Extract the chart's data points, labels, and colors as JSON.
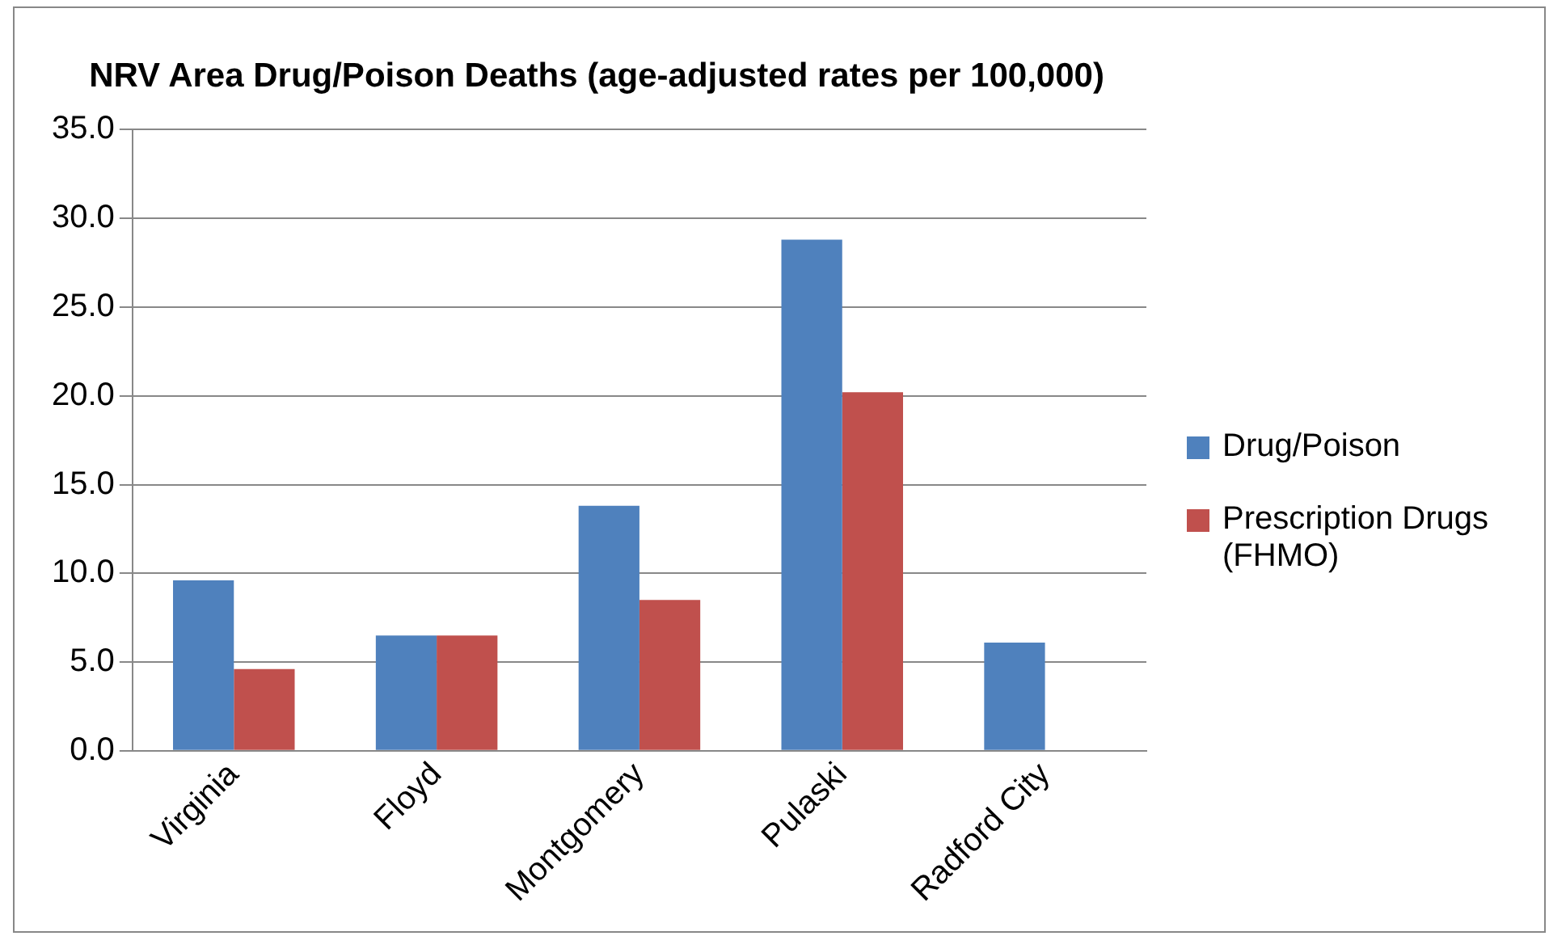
{
  "chart_data": {
    "type": "bar",
    "title": "NRV Area Drug/Poison Deaths (age-adjusted rates per 100,000)",
    "categories": [
      "Virginia",
      "Floyd",
      "Montgomery",
      "Pulaski",
      "Radford City"
    ],
    "series": [
      {
        "name": "Drug/Poison",
        "color": "#4f81bd",
        "values": [
          9.6,
          6.5,
          13.8,
          28.8,
          6.1
        ]
      },
      {
        "name": "Prescription Drugs (FHMO)",
        "color": "#c0504d",
        "values": [
          4.6,
          6.5,
          8.5,
          20.2,
          null
        ]
      }
    ],
    "ylim": [
      0,
      35
    ],
    "yticks": [
      {
        "value": 0,
        "label": "0.0"
      },
      {
        "value": 5,
        "label": "5.0"
      },
      {
        "value": 10,
        "label": "10.0"
      },
      {
        "value": 15,
        "label": "15.0"
      },
      {
        "value": 20,
        "label": "20.0"
      },
      {
        "value": 25,
        "label": "25.0"
      },
      {
        "value": 30,
        "label": "30.0"
      },
      {
        "value": 35,
        "label": "35.0"
      }
    ],
    "grid": "y",
    "legend": "right"
  }
}
